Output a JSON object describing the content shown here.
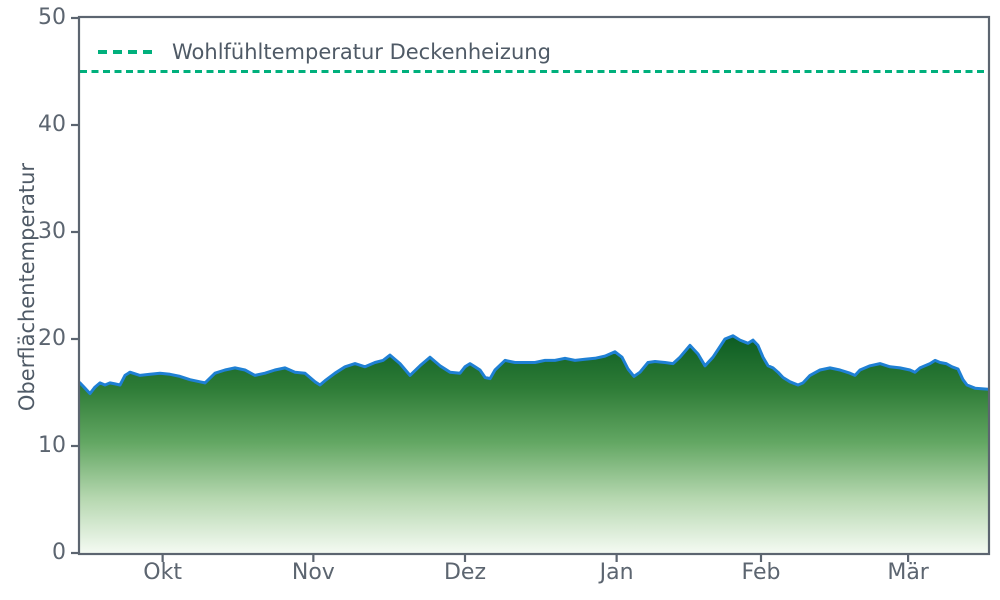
{
  "chart_data": {
    "type": "area",
    "title": "",
    "xlabel": "",
    "ylabel": "Oberflächentemperatur",
    "ylim": [
      0,
      50
    ],
    "grid": false,
    "background": "#ffffff",
    "axis_color": "#5c6570",
    "tick_color": "#5c6570",
    "yticks": [
      0,
      10,
      20,
      30,
      40,
      50
    ],
    "xticks": [
      {
        "label": "Okt",
        "pos": 0.091
      },
      {
        "label": "Nov",
        "pos": 0.257
      },
      {
        "label": "Dez",
        "pos": 0.424
      },
      {
        "label": "Jan",
        "pos": 0.591
      },
      {
        "label": "Feb",
        "pos": 0.75
      },
      {
        "label": "Mär",
        "pos": 0.912
      }
    ],
    "legend": {
      "position": "upper-left",
      "label": "Wohlfühltemperatur Deckenheizung",
      "swatch_style": "dashed",
      "swatch_color": "#00b07c"
    },
    "threshold": {
      "name": "Wohlfühltemperatur Deckenheizung",
      "value": 45,
      "color": "#00b07c",
      "style": "dashed"
    },
    "series": [
      {
        "name": "Oberflächentemperatur",
        "line_color": "#1f80d4",
        "fill_gradient": [
          [
            "0%",
            "#0a5a21"
          ],
          [
            "25%",
            "#2d7b36"
          ],
          [
            "50%",
            "#63a763"
          ],
          [
            "75%",
            "#b5d7af"
          ],
          [
            "100%",
            "#f4faf2"
          ]
        ],
        "points": [
          [
            0.0,
            15.9
          ],
          [
            0.0055,
            15.4
          ],
          [
            0.011,
            14.9
          ],
          [
            0.0165,
            15.5
          ],
          [
            0.022,
            15.9
          ],
          [
            0.0275,
            15.7
          ],
          [
            0.033,
            15.9
          ],
          [
            0.0386,
            15.8
          ],
          [
            0.0441,
            15.7
          ],
          [
            0.0496,
            16.6
          ],
          [
            0.0551,
            16.9
          ],
          [
            0.0661,
            16.6
          ],
          [
            0.0771,
            16.7
          ],
          [
            0.0881,
            16.8
          ],
          [
            0.0991,
            16.7
          ],
          [
            0.1101,
            16.5
          ],
          [
            0.1211,
            16.2
          ],
          [
            0.1322,
            16.0
          ],
          [
            0.1377,
            15.9
          ],
          [
            0.1487,
            16.8
          ],
          [
            0.1597,
            17.1
          ],
          [
            0.1707,
            17.3
          ],
          [
            0.1817,
            17.1
          ],
          [
            0.1927,
            16.6
          ],
          [
            0.2037,
            16.8
          ],
          [
            0.2147,
            17.1
          ],
          [
            0.2258,
            17.3
          ],
          [
            0.2368,
            16.9
          ],
          [
            0.2478,
            16.8
          ],
          [
            0.2588,
            16.0
          ],
          [
            0.2643,
            15.7
          ],
          [
            0.2698,
            16.1
          ],
          [
            0.2808,
            16.8
          ],
          [
            0.2918,
            17.4
          ],
          [
            0.3029,
            17.7
          ],
          [
            0.3139,
            17.4
          ],
          [
            0.3249,
            17.8
          ],
          [
            0.3337,
            18.0
          ],
          [
            0.3414,
            18.5
          ],
          [
            0.3524,
            17.7
          ],
          [
            0.3634,
            16.6
          ],
          [
            0.3744,
            17.5
          ],
          [
            0.3855,
            18.3
          ],
          [
            0.3965,
            17.5
          ],
          [
            0.4075,
            16.9
          ],
          [
            0.4185,
            16.8
          ],
          [
            0.424,
            17.4
          ],
          [
            0.4295,
            17.7
          ],
          [
            0.435,
            17.4
          ],
          [
            0.4405,
            17.1
          ],
          [
            0.4461,
            16.4
          ],
          [
            0.4516,
            16.3
          ],
          [
            0.4571,
            17.1
          ],
          [
            0.4681,
            18.0
          ],
          [
            0.4791,
            17.8
          ],
          [
            0.4901,
            17.8
          ],
          [
            0.5011,
            17.8
          ],
          [
            0.5121,
            18.0
          ],
          [
            0.5231,
            18.0
          ],
          [
            0.5341,
            18.2
          ],
          [
            0.5451,
            18.0
          ],
          [
            0.5562,
            18.1
          ],
          [
            0.5672,
            18.2
          ],
          [
            0.5782,
            18.4
          ],
          [
            0.5892,
            18.8
          ],
          [
            0.5969,
            18.3
          ],
          [
            0.6035,
            17.2
          ],
          [
            0.6101,
            16.5
          ],
          [
            0.6167,
            16.9
          ],
          [
            0.6256,
            17.8
          ],
          [
            0.6333,
            17.9
          ],
          [
            0.6443,
            17.8
          ],
          [
            0.6531,
            17.7
          ],
          [
            0.6608,
            18.3
          ],
          [
            0.6718,
            19.4
          ],
          [
            0.6806,
            18.6
          ],
          [
            0.6883,
            17.5
          ],
          [
            0.6971,
            18.3
          ],
          [
            0.7104,
            20.0
          ],
          [
            0.7192,
            20.3
          ],
          [
            0.7269,
            19.9
          ],
          [
            0.7357,
            19.6
          ],
          [
            0.7412,
            19.9
          ],
          [
            0.7467,
            19.4
          ],
          [
            0.7522,
            18.3
          ],
          [
            0.7577,
            17.5
          ],
          [
            0.7632,
            17.3
          ],
          [
            0.7687,
            16.9
          ],
          [
            0.7742,
            16.4
          ],
          [
            0.7819,
            16.0
          ],
          [
            0.7907,
            15.7
          ],
          [
            0.7963,
            15.9
          ],
          [
            0.804,
            16.6
          ],
          [
            0.815,
            17.1
          ],
          [
            0.826,
            17.3
          ],
          [
            0.837,
            17.1
          ],
          [
            0.848,
            16.8
          ],
          [
            0.8535,
            16.6
          ],
          [
            0.859,
            17.1
          ],
          [
            0.87,
            17.5
          ],
          [
            0.8811,
            17.7
          ],
          [
            0.8921,
            17.4
          ],
          [
            0.9031,
            17.3
          ],
          [
            0.9141,
            17.1
          ],
          [
            0.9196,
            16.9
          ],
          [
            0.9251,
            17.3
          ],
          [
            0.9361,
            17.7
          ],
          [
            0.9417,
            18.0
          ],
          [
            0.9472,
            17.8
          ],
          [
            0.9538,
            17.7
          ],
          [
            0.9604,
            17.4
          ],
          [
            0.967,
            17.2
          ],
          [
            0.9725,
            16.2
          ],
          [
            0.9769,
            15.7
          ],
          [
            0.9857,
            15.4
          ],
          [
            1.0,
            15.3
          ]
        ]
      }
    ]
  }
}
